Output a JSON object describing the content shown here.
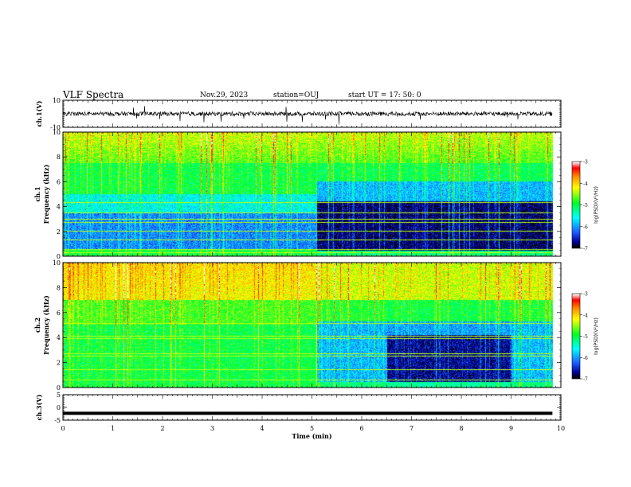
{
  "header": {
    "title": "VLF Spectra",
    "date": "Nov.29, 2023",
    "station": "station=OUJ",
    "start": "start UT = 17: 50: 0"
  },
  "colors": {
    "waveform": "#000000",
    "colormap": [
      "#000000",
      "#0000aa",
      "#1e64ff",
      "#00ffff",
      "#00ff00",
      "#ffff00",
      "#ff8000",
      "#ff0000",
      "#ffffff"
    ]
  },
  "chart_data": [
    {
      "type": "line",
      "panel": "ch1-waveform",
      "ylabel": "ch.1(V)",
      "ylim": [
        -10,
        10
      ],
      "yticks": [
        "10",
        "-10"
      ],
      "description_values": {
        "baseline": 0,
        "amplitude": 2
      }
    },
    {
      "type": "heatmap",
      "panel": "ch1-spectrogram",
      "ylabel": "ch.1\nFrequency (kHz)",
      "ylabel_line1": "ch.1",
      "ylabel_line2": "Frequency (kHz)",
      "ylim": [
        0,
        10
      ],
      "yticks": [
        "0",
        "2",
        "4",
        "6",
        "8",
        "10"
      ],
      "xlim": [
        0,
        10
      ],
      "data_end_min": 9.83,
      "transition_min": 5.1,
      "colorbar": {
        "label": "log(PSD)(V²/Hz)",
        "range": [
          -7,
          -3
        ],
        "ticks": [
          "-3",
          "-4",
          "-5",
          "-6",
          "-7"
        ]
      }
    },
    {
      "type": "heatmap",
      "panel": "ch2-spectrogram",
      "ylabel_line1": "ch.2",
      "ylabel_line2": "Frequency (kHz)",
      "ylim": [
        0,
        10
      ],
      "yticks": [
        "0",
        "2",
        "4",
        "6",
        "8",
        "10"
      ],
      "xlim": [
        0,
        10
      ],
      "data_end_min": 9.83,
      "transition_min": 5.1,
      "colorbar": {
        "label": "log(PSD)(V²/Hz)",
        "range": [
          -7,
          -3
        ],
        "ticks": [
          "-3",
          "-4",
          "-5",
          "-6",
          "-7"
        ]
      }
    },
    {
      "type": "line",
      "panel": "ch3-waveform",
      "ylabel": "ch.3(V)",
      "ylim": [
        -5,
        5
      ],
      "yticks": [
        "5",
        "0",
        "-5"
      ],
      "x": [
        0,
        9.83
      ],
      "y": [
        -2.3,
        -2.3
      ],
      "xlabel": "Time (min)",
      "xticks": [
        "0",
        "1",
        "2",
        "3",
        "4",
        "5",
        "6",
        "7",
        "8",
        "9",
        "10"
      ]
    }
  ]
}
